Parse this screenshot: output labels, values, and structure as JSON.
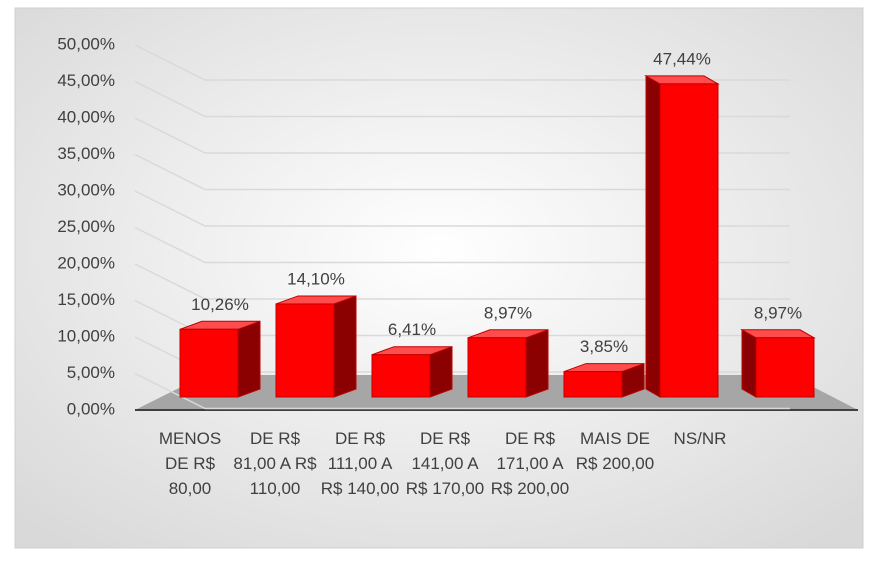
{
  "chart_data": {
    "type": "bar3d",
    "categories": [
      "MENOS DE R$ 80,00",
      "DE R$ 81,00 A R$ 110,00",
      "DE R$ 111,00 A R$ 140,00",
      "DE R$ 141,00 A R$ 170,00",
      "DE R$ 171,00 A R$ 200,00",
      "MAIS DE R$ 200,00",
      "NS/NR"
    ],
    "values": [
      10.26,
      14.1,
      6.41,
      8.97,
      3.85,
      47.44,
      8.97
    ],
    "value_labels": [
      "10,26%",
      "14,10%",
      "6,41%",
      "8,97%",
      "3,85%",
      "47,44%",
      "8,97%"
    ],
    "color": "#ff0000",
    "ylim": [
      0,
      50
    ],
    "yticks": [
      {
        "value": 0,
        "label": "0,00%"
      },
      {
        "value": 5,
        "label": "5,00%"
      },
      {
        "value": 10,
        "label": "10,00%"
      },
      {
        "value": 15,
        "label": "15,00%"
      },
      {
        "value": 20,
        "label": "20,00%"
      },
      {
        "value": 25,
        "label": "25,00%"
      },
      {
        "value": 30,
        "label": "30,00%"
      },
      {
        "value": 35,
        "label": "35,00%"
      },
      {
        "value": 40,
        "label": "40,00%"
      },
      {
        "value": 45,
        "label": "45,00%"
      },
      {
        "value": 50,
        "label": "50,00%"
      }
    ],
    "grid": true
  }
}
